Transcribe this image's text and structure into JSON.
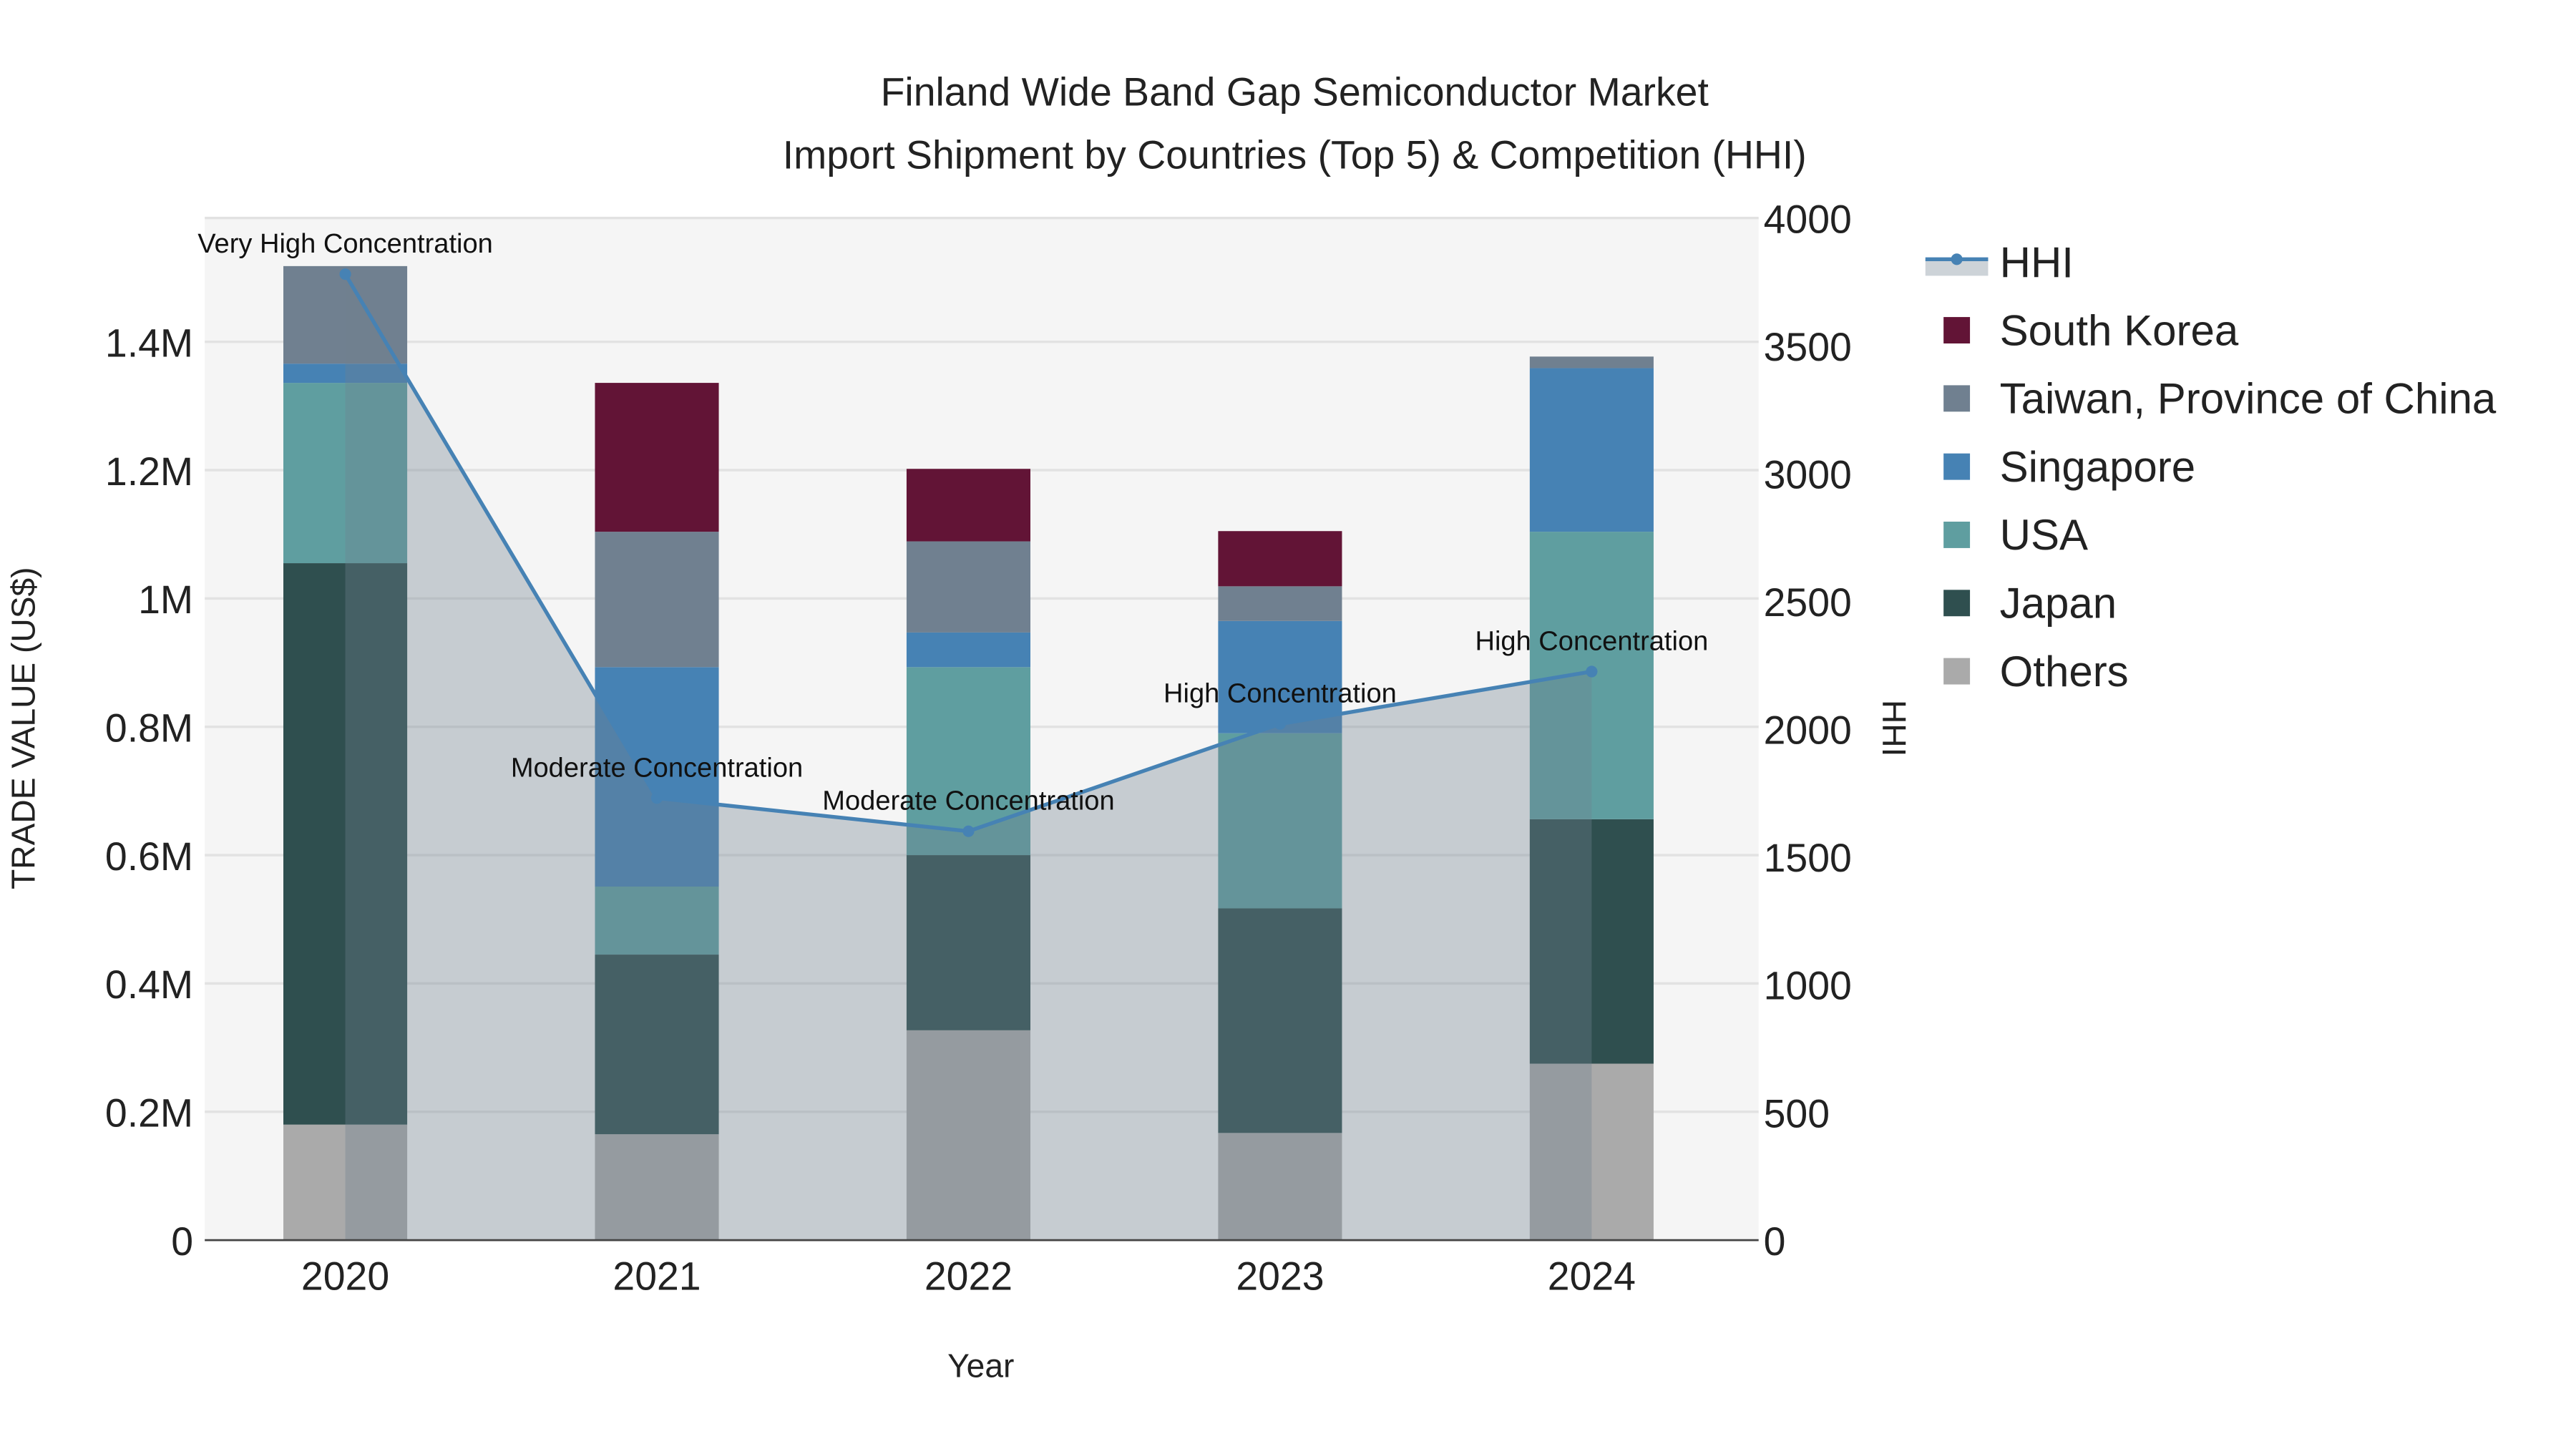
{
  "chart_data": {
    "type": "bar",
    "title_line1": "Finland Wide Band Gap Semiconductor Market",
    "title_line2": "Import Shipment by Countries (Top 5) & Competition (HHI)",
    "xlabel": "Year",
    "ylabel": "TRADE VALUE (US$)",
    "y2label": "HHI",
    "categories": [
      "2020",
      "2021",
      "2022",
      "2023",
      "2024"
    ],
    "ylim": [
      0,
      1600000
    ],
    "y2lim": [
      0,
      4000
    ],
    "yticks": [
      {
        "v": 0,
        "label": "0"
      },
      {
        "v": 200000,
        "label": "0.2M"
      },
      {
        "v": 400000,
        "label": "0.4M"
      },
      {
        "v": 600000,
        "label": "0.6M"
      },
      {
        "v": 800000,
        "label": "0.8M"
      },
      {
        "v": 1000000,
        "label": "1M"
      },
      {
        "v": 1200000,
        "label": "1.2M"
      },
      {
        "v": 1400000,
        "label": "1.4M"
      }
    ],
    "y2ticks": [
      {
        "v": 0,
        "label": "0"
      },
      {
        "v": 500,
        "label": "500"
      },
      {
        "v": 1000,
        "label": "1000"
      },
      {
        "v": 1500,
        "label": "1500"
      },
      {
        "v": 2000,
        "label": "2000"
      },
      {
        "v": 2500,
        "label": "2500"
      },
      {
        "v": 3000,
        "label": "3000"
      },
      {
        "v": 3500,
        "label": "3500"
      },
      {
        "v": 4000,
        "label": "4000"
      }
    ],
    "series": [
      {
        "name": "Others",
        "color": "#aaaaaa",
        "values": [
          180000,
          165000,
          327000,
          167000,
          275000
        ]
      },
      {
        "name": "Japan",
        "color": "#2f4f4f",
        "values": [
          875000,
          280000,
          273000,
          350000,
          381000
        ]
      },
      {
        "name": "USA",
        "color": "#5f9ea0",
        "values": [
          281000,
          106000,
          293000,
          273000,
          448000
        ]
      },
      {
        "name": "Singapore",
        "color": "#4682b4",
        "values": [
          30000,
          342000,
          54000,
          175000,
          255000
        ]
      },
      {
        "name": "Taiwan, Province of China",
        "color": "#708090",
        "values": [
          152000,
          211000,
          142000,
          54000,
          18000
        ]
      },
      {
        "name": "South Korea",
        "color": "#621436",
        "values": [
          0,
          232000,
          113000,
          86000,
          0
        ]
      }
    ],
    "hhi": {
      "name": "HHI",
      "color": "#4682b4",
      "values": [
        3780,
        1730,
        1600,
        2020,
        2225
      ],
      "annotations": [
        "Very High Concentration",
        "Moderate Concentration",
        "Moderate Concentration",
        "High Concentration",
        "High Concentration"
      ]
    },
    "legend_placement": "right",
    "grid": true
  }
}
